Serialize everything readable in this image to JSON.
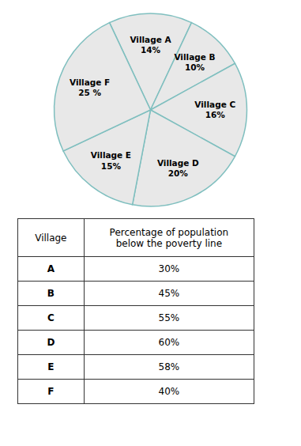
{
  "chart_data": [
    {
      "type": "pie",
      "categories": [
        "Village A",
        "Village B",
        "Village C",
        "Village D",
        "Village E",
        "Village F"
      ],
      "values": [
        14,
        10,
        16,
        20,
        15,
        25
      ],
      "value_labels": [
        "14%",
        "10%",
        "16%",
        "20%",
        "15%",
        "25 %"
      ],
      "color": "#e8e8e8",
      "data_labels": true
    },
    {
      "type": "table",
      "columns": [
        "Village",
        "Percentage of population\nbelow the poverty line"
      ],
      "categories": [
        "A",
        "B",
        "C",
        "D",
        "E",
        "F"
      ],
      "values": [
        30,
        45,
        55,
        60,
        58,
        40
      ],
      "value_labels": [
        "30%",
        "45%",
        "55%",
        "60%",
        "58%",
        "40%"
      ]
    }
  ]
}
